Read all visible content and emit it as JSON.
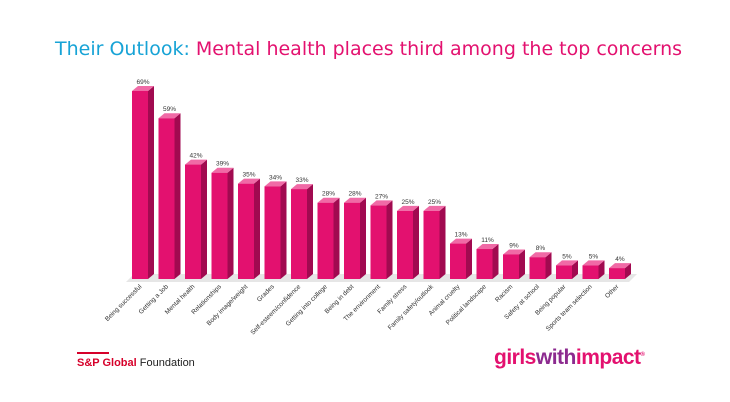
{
  "header": {
    "title_prefix": "Their Outlook:",
    "title_main": "Mental health places third among the top concerns"
  },
  "chart_data": {
    "type": "bar",
    "categories": [
      "Being successful",
      "Getting a Job",
      "Mental health",
      "Relationships",
      "Body image/weight",
      "Grades",
      "Self-esteem/confidence",
      "Getting into college",
      "Being in debt",
      "The environment",
      "Family stress",
      "Family safety/outlook",
      "Animal cruelty",
      "Political landscape",
      "Racism",
      "Safety at school",
      "Being popular",
      "Sports team selection",
      "Other"
    ],
    "values": [
      69,
      59,
      42,
      39,
      35,
      34,
      33,
      28,
      28,
      27,
      25,
      25,
      13,
      11,
      9,
      8,
      5,
      5,
      4
    ],
    "value_labels": [
      "69%",
      "59%",
      "42%",
      "39%",
      "35%",
      "34%",
      "33%",
      "28%",
      "28%",
      "27%",
      "25%",
      "25%",
      "13%",
      "11%",
      "9%",
      "8%",
      "5%",
      "5%",
      "4%"
    ],
    "ylim": [
      0,
      75
    ],
    "grid": false,
    "legend": "none",
    "bar_color": "#e3116f"
  },
  "footer": {
    "left_brand": "S&P Global",
    "left_suffix": " Foundation",
    "right_part1": "girls",
    "right_part2": "with",
    "right_part3": "impact",
    "right_mark": "®"
  }
}
